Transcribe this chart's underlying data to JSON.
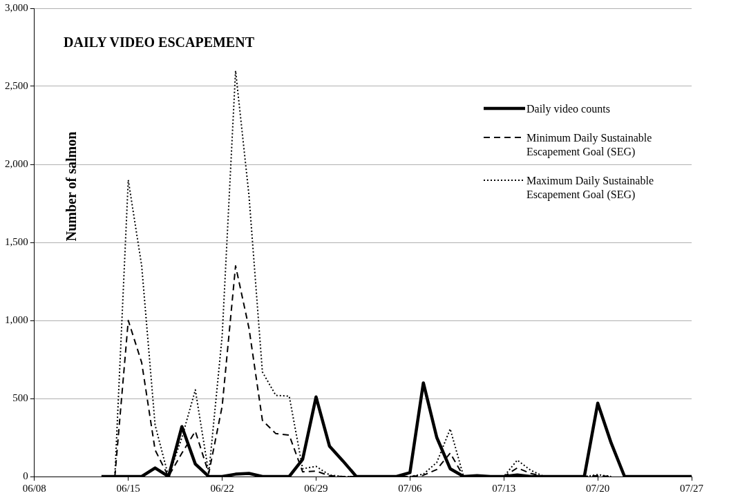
{
  "chart_data": {
    "type": "line",
    "title": "DAILY VIDEO ESCAPEMENT",
    "ylabel": "Number of salmon",
    "x": [
      "--06-13",
      "--06-14",
      "--06-15",
      "--06-16",
      "--06-17",
      "--06-18",
      "--06-19",
      "--06-20",
      "--06-21",
      "--06-22",
      "--06-23",
      "--06-24",
      "--06-25",
      "--06-26",
      "--06-27",
      "--06-28",
      "--06-29",
      "--06-30",
      "--07-01",
      "--07-02",
      "--07-03",
      "--07-04",
      "--07-05",
      "--07-06",
      "--07-07",
      "--07-08",
      "--07-09",
      "--07-10",
      "--07-11",
      "--07-12",
      "--07-13",
      "--07-14",
      "--07-15",
      "--07-16",
      "--07-17",
      "--07-18",
      "--07-19",
      "--07-20",
      "--07-21",
      "--07-22",
      "--07-23",
      "--07-24",
      "--07-25",
      "--07-26",
      "--07-27"
    ],
    "series": [
      {
        "name": "Daily video counts",
        "color": "#000000",
        "line_style": "solid",
        "values": [
          0,
          0,
          0,
          0,
          55,
          0,
          320,
          80,
          0,
          0,
          15,
          20,
          0,
          0,
          0,
          110,
          510,
          195,
          100,
          0,
          0,
          0,
          0,
          25,
          600,
          250,
          50,
          0,
          5,
          0,
          0,
          10,
          0,
          0,
          0,
          0,
          0,
          470,
          215,
          0,
          0,
          0,
          0,
          0,
          0
        ]
      },
      {
        "name": "Minimum Daily Sustainable Escapement Goal (SEG)",
        "color": "#000000",
        "line_style": "dashed",
        "values": [
          null,
          0,
          1000,
          730,
          170,
          0,
          150,
          290,
          20,
          450,
          1350,
          950,
          360,
          275,
          265,
          30,
          35,
          5,
          0,
          0,
          0,
          0,
          0,
          0,
          8,
          45,
          150,
          0,
          0,
          0,
          0,
          55,
          20,
          0,
          0,
          0,
          0,
          5,
          0,
          null,
          null,
          null,
          null,
          null,
          null
        ]
      },
      {
        "name": "Maximum Daily Sustainable Escapement Goal (SEG)",
        "color": "#000000",
        "line_style": "dotted",
        "values": [
          null,
          0,
          1900,
          1350,
          330,
          0,
          250,
          555,
          20,
          900,
          2600,
          1800,
          670,
          520,
          515,
          50,
          65,
          10,
          0,
          0,
          0,
          0,
          0,
          0,
          15,
          90,
          305,
          0,
          0,
          0,
          0,
          105,
          40,
          0,
          0,
          0,
          0,
          12,
          0,
          null,
          null,
          null,
          null,
          null,
          null
        ]
      }
    ],
    "xlim": [
      "--06-08",
      "--07-27"
    ],
    "xticks": [
      {
        "value": "--06-08",
        "label": "06/08"
      },
      {
        "value": "--06-15",
        "label": "06/15"
      },
      {
        "value": "--06-22",
        "label": "06/22"
      },
      {
        "value": "--06-29",
        "label": "06/29"
      },
      {
        "value": "--07-06",
        "label": "07/06"
      },
      {
        "value": "--07-13",
        "label": "07/13"
      },
      {
        "value": "--07-20",
        "label": "07/20"
      },
      {
        "value": "--07-27",
        "label": "07/27"
      }
    ],
    "ylim": [
      0,
      3000
    ],
    "yticks": [
      0,
      {
        "value": 500,
        "label": "500"
      },
      {
        "value": 1000,
        "label": "1,000"
      },
      {
        "value": 1500,
        "label": "1,500"
      },
      {
        "value": 2000,
        "label": "2,000"
      },
      {
        "value": 2500,
        "label": "2,500"
      },
      {
        "value": 3000,
        "label": "3,000"
      }
    ],
    "grid": "y",
    "legend": "top right",
    "marker": "none"
  }
}
